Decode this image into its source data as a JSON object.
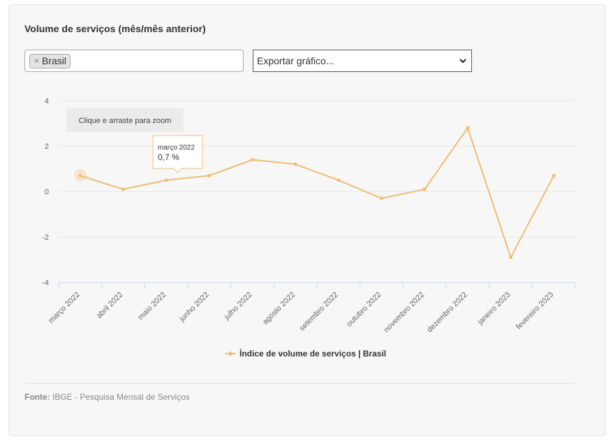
{
  "title": "Volume de serviços (mês/mês anterior)",
  "filter": {
    "tag_label": "Brasil",
    "remove_glyph": "×"
  },
  "export": {
    "label": "Exportar gráfico..."
  },
  "zoom_hint": "Clique e arraste para zoom",
  "tooltip": {
    "month": "março 2022",
    "value": "0,7 %"
  },
  "legend_label": "Índice de volume de serviços | Brasil",
  "source": {
    "label": "Fonte:",
    "text": "IBGE - Pesquisa Mensal de Serviços"
  },
  "colors": {
    "series": "#f0bd73",
    "grid": "#e6e6e6",
    "axis": "#ccd6eb"
  },
  "chart_data": {
    "type": "line",
    "categories": [
      "março 2022",
      "abril 2022",
      "maio 2022",
      "junho 2022",
      "julho 2022",
      "agosto 2022",
      "setembro 2022",
      "outubro 2022",
      "novembro 2022",
      "dezembro 2022",
      "janeiro 2023",
      "fevereiro 2023"
    ],
    "series": [
      {
        "name": "Índice de volume de serviços | Brasil",
        "values": [
          0.7,
          0.1,
          0.5,
          0.7,
          1.4,
          1.2,
          0.5,
          -0.3,
          0.1,
          2.8,
          -2.9,
          0.7
        ]
      }
    ],
    "yticks": [
      4,
      2,
      0,
      -2,
      -4
    ],
    "ylim": [
      -4,
      4
    ],
    "grid": true,
    "legend": "bottom-center"
  }
}
